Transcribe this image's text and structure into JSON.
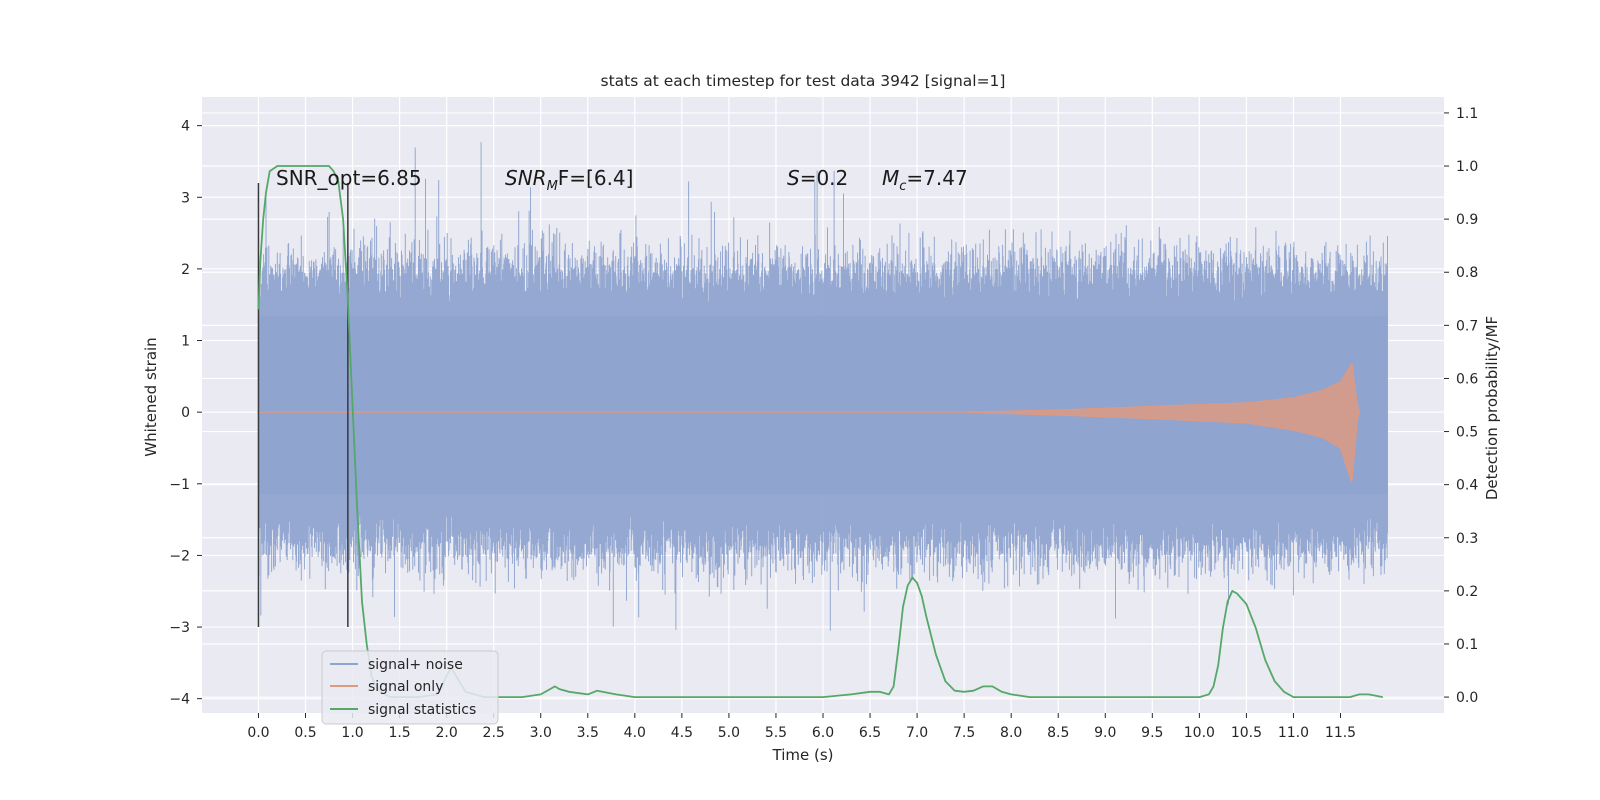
{
  "chart_data": {
    "type": "line",
    "title": "stats at each timestep for test data 3942 [signal=1]",
    "xlabel": "Time (s)",
    "ylabel": "Whitened strain",
    "y2label": "Detection probability/MF",
    "xlim": [
      -0.6,
      12.6
    ],
    "ylim": [
      -4.2,
      4.4
    ],
    "y2lim": [
      -0.03,
      1.13
    ],
    "x_ticks": [
      "0.0",
      "0.5",
      "1.0",
      "1.5",
      "2.0",
      "2.5",
      "3.0",
      "3.5",
      "4.0",
      "4.5",
      "5.0",
      "5.5",
      "6.0",
      "6.5",
      "7.0",
      "7.5",
      "8.0",
      "8.5",
      "9.0",
      "9.5",
      "10.0",
      "10.5",
      "11.0",
      "11.5"
    ],
    "y_ticks": [
      "4",
      "3",
      "2",
      "1",
      "0",
      "−1",
      "−2",
      "−3",
      "−4"
    ],
    "y2_ticks": [
      "1.1",
      "1.0",
      "0.9",
      "0.8",
      "0.7",
      "0.6",
      "0.5",
      "0.4",
      "0.3",
      "0.2",
      "0.1",
      "0.0"
    ],
    "grid": true,
    "legend_position": "lower-left",
    "colors": {
      "signal_noise": "#8fa4cf",
      "signal_only": "#dd9a83",
      "signal_stats": "#55a868",
      "background": "#eaeaf2",
      "marker": "#3a3a3a"
    },
    "annotations": [
      {
        "prefix": "SNR_opt=6.85",
        "italic": "",
        "sub": "",
        "suffix": ""
      },
      {
        "prefix": "",
        "italic": "SNR",
        "sub": "M",
        "suffix": "F=[6.4]"
      },
      {
        "prefix": "",
        "italic": "S",
        "sub": "",
        "suffix": "=0.2"
      },
      {
        "prefix": "",
        "italic": "M",
        "sub": "c",
        "suffix": "=7.47"
      }
    ],
    "series": [
      {
        "name": "signal+ noise",
        "x_range": [
          0.0,
          12.0
        ],
        "values_summary": {
          "typical_band": [
            -1.9,
            2.0
          ],
          "max": 4.08,
          "min": -3.86
        }
      },
      {
        "name": "signal only",
        "envelope": {
          "x": [
            0.0,
            7.5,
            8.5,
            9.5,
            10.5,
            11.0,
            11.3,
            11.5,
            11.62,
            11.68,
            11.7
          ],
          "upper": [
            0.0,
            0.0,
            0.03,
            0.08,
            0.13,
            0.2,
            0.3,
            0.42,
            0.68,
            0.1,
            0.0
          ],
          "lower": [
            0.0,
            0.0,
            -0.04,
            -0.09,
            -0.15,
            -0.25,
            -0.35,
            -0.5,
            -0.98,
            -0.1,
            0.0
          ]
        }
      },
      {
        "name": "signal statistics",
        "axis": "right",
        "x": [
          0.0,
          0.02,
          0.05,
          0.08,
          0.12,
          0.2,
          0.35,
          0.5,
          0.65,
          0.75,
          0.8,
          0.85,
          0.9,
          0.95,
          1.0,
          1.05,
          1.1,
          1.15,
          1.2,
          1.25,
          1.3,
          1.4,
          1.5,
          1.7,
          1.9,
          1.95,
          2.0,
          2.05,
          2.1,
          2.2,
          2.4,
          2.8,
          3.0,
          3.1,
          3.15,
          3.2,
          3.3,
          3.5,
          3.6,
          3.8,
          4.0,
          5.0,
          6.0,
          6.3,
          6.5,
          6.6,
          6.7,
          6.75,
          6.8,
          6.85,
          6.9,
          6.95,
          7.0,
          7.05,
          7.1,
          7.2,
          7.3,
          7.4,
          7.5,
          7.6,
          7.7,
          7.8,
          7.9,
          8.0,
          8.2,
          9.0,
          10.0,
          10.1,
          10.15,
          10.2,
          10.25,
          10.3,
          10.35,
          10.4,
          10.5,
          10.6,
          10.7,
          10.8,
          10.9,
          11.0,
          11.2,
          11.5,
          11.6,
          11.7,
          11.8,
          11.95
        ],
        "values": [
          0.73,
          0.82,
          0.9,
          0.95,
          0.99,
          1.0,
          1.0,
          1.0,
          1.0,
          1.0,
          0.99,
          0.97,
          0.9,
          0.75,
          0.55,
          0.35,
          0.18,
          0.1,
          0.04,
          0.02,
          0.01,
          0.0,
          0.0,
          0.0,
          0.005,
          0.02,
          0.04,
          0.055,
          0.04,
          0.01,
          0.0,
          0.0,
          0.005,
          0.015,
          0.02,
          0.015,
          0.01,
          0.005,
          0.012,
          0.005,
          0.0,
          0.0,
          0.0,
          0.005,
          0.01,
          0.01,
          0.005,
          0.02,
          0.09,
          0.17,
          0.21,
          0.225,
          0.215,
          0.19,
          0.15,
          0.08,
          0.03,
          0.012,
          0.01,
          0.012,
          0.02,
          0.02,
          0.01,
          0.005,
          0.0,
          0.0,
          0.0,
          0.005,
          0.02,
          0.06,
          0.13,
          0.18,
          0.2,
          0.195,
          0.175,
          0.13,
          0.07,
          0.03,
          0.01,
          0.0,
          0.0,
          0.0,
          0.0,
          0.005,
          0.005,
          0.0
        ]
      }
    ],
    "markers": [
      {
        "x": 0.0,
        "y_range": [
          -3.0,
          3.2
        ]
      },
      {
        "x": 0.95,
        "y_range": [
          -3.0,
          3.2
        ]
      }
    ]
  }
}
